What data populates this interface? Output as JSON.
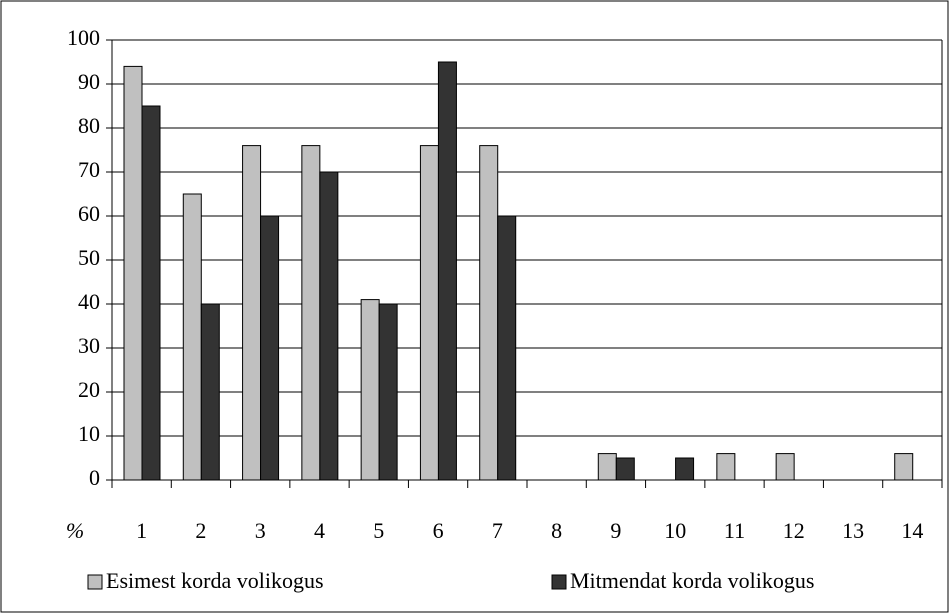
{
  "chart_data": {
    "type": "bar",
    "x_label": "%",
    "categories": [
      "1",
      "2",
      "3",
      "4",
      "5",
      "6",
      "7",
      "8",
      "9",
      "10",
      "11",
      "12",
      "13",
      "14"
    ],
    "series": [
      {
        "name": "Esimest korda volikogus",
        "color": "#c0c0c0",
        "values": [
          94,
          65,
          76,
          76,
          41,
          76,
          76,
          0,
          6,
          0,
          6,
          6,
          0,
          6
        ]
      },
      {
        "name": "Mitmendat korda volikogus",
        "color": "#333333",
        "values": [
          85,
          40,
          60,
          70,
          40,
          95,
          60,
          0,
          5,
          5,
          0,
          0,
          0,
          0
        ]
      }
    ],
    "ylim": [
      0,
      100
    ],
    "yticks": [
      0,
      10,
      20,
      30,
      40,
      50,
      60,
      70,
      80,
      90,
      100
    ],
    "grid": true,
    "legend": "bottom"
  }
}
